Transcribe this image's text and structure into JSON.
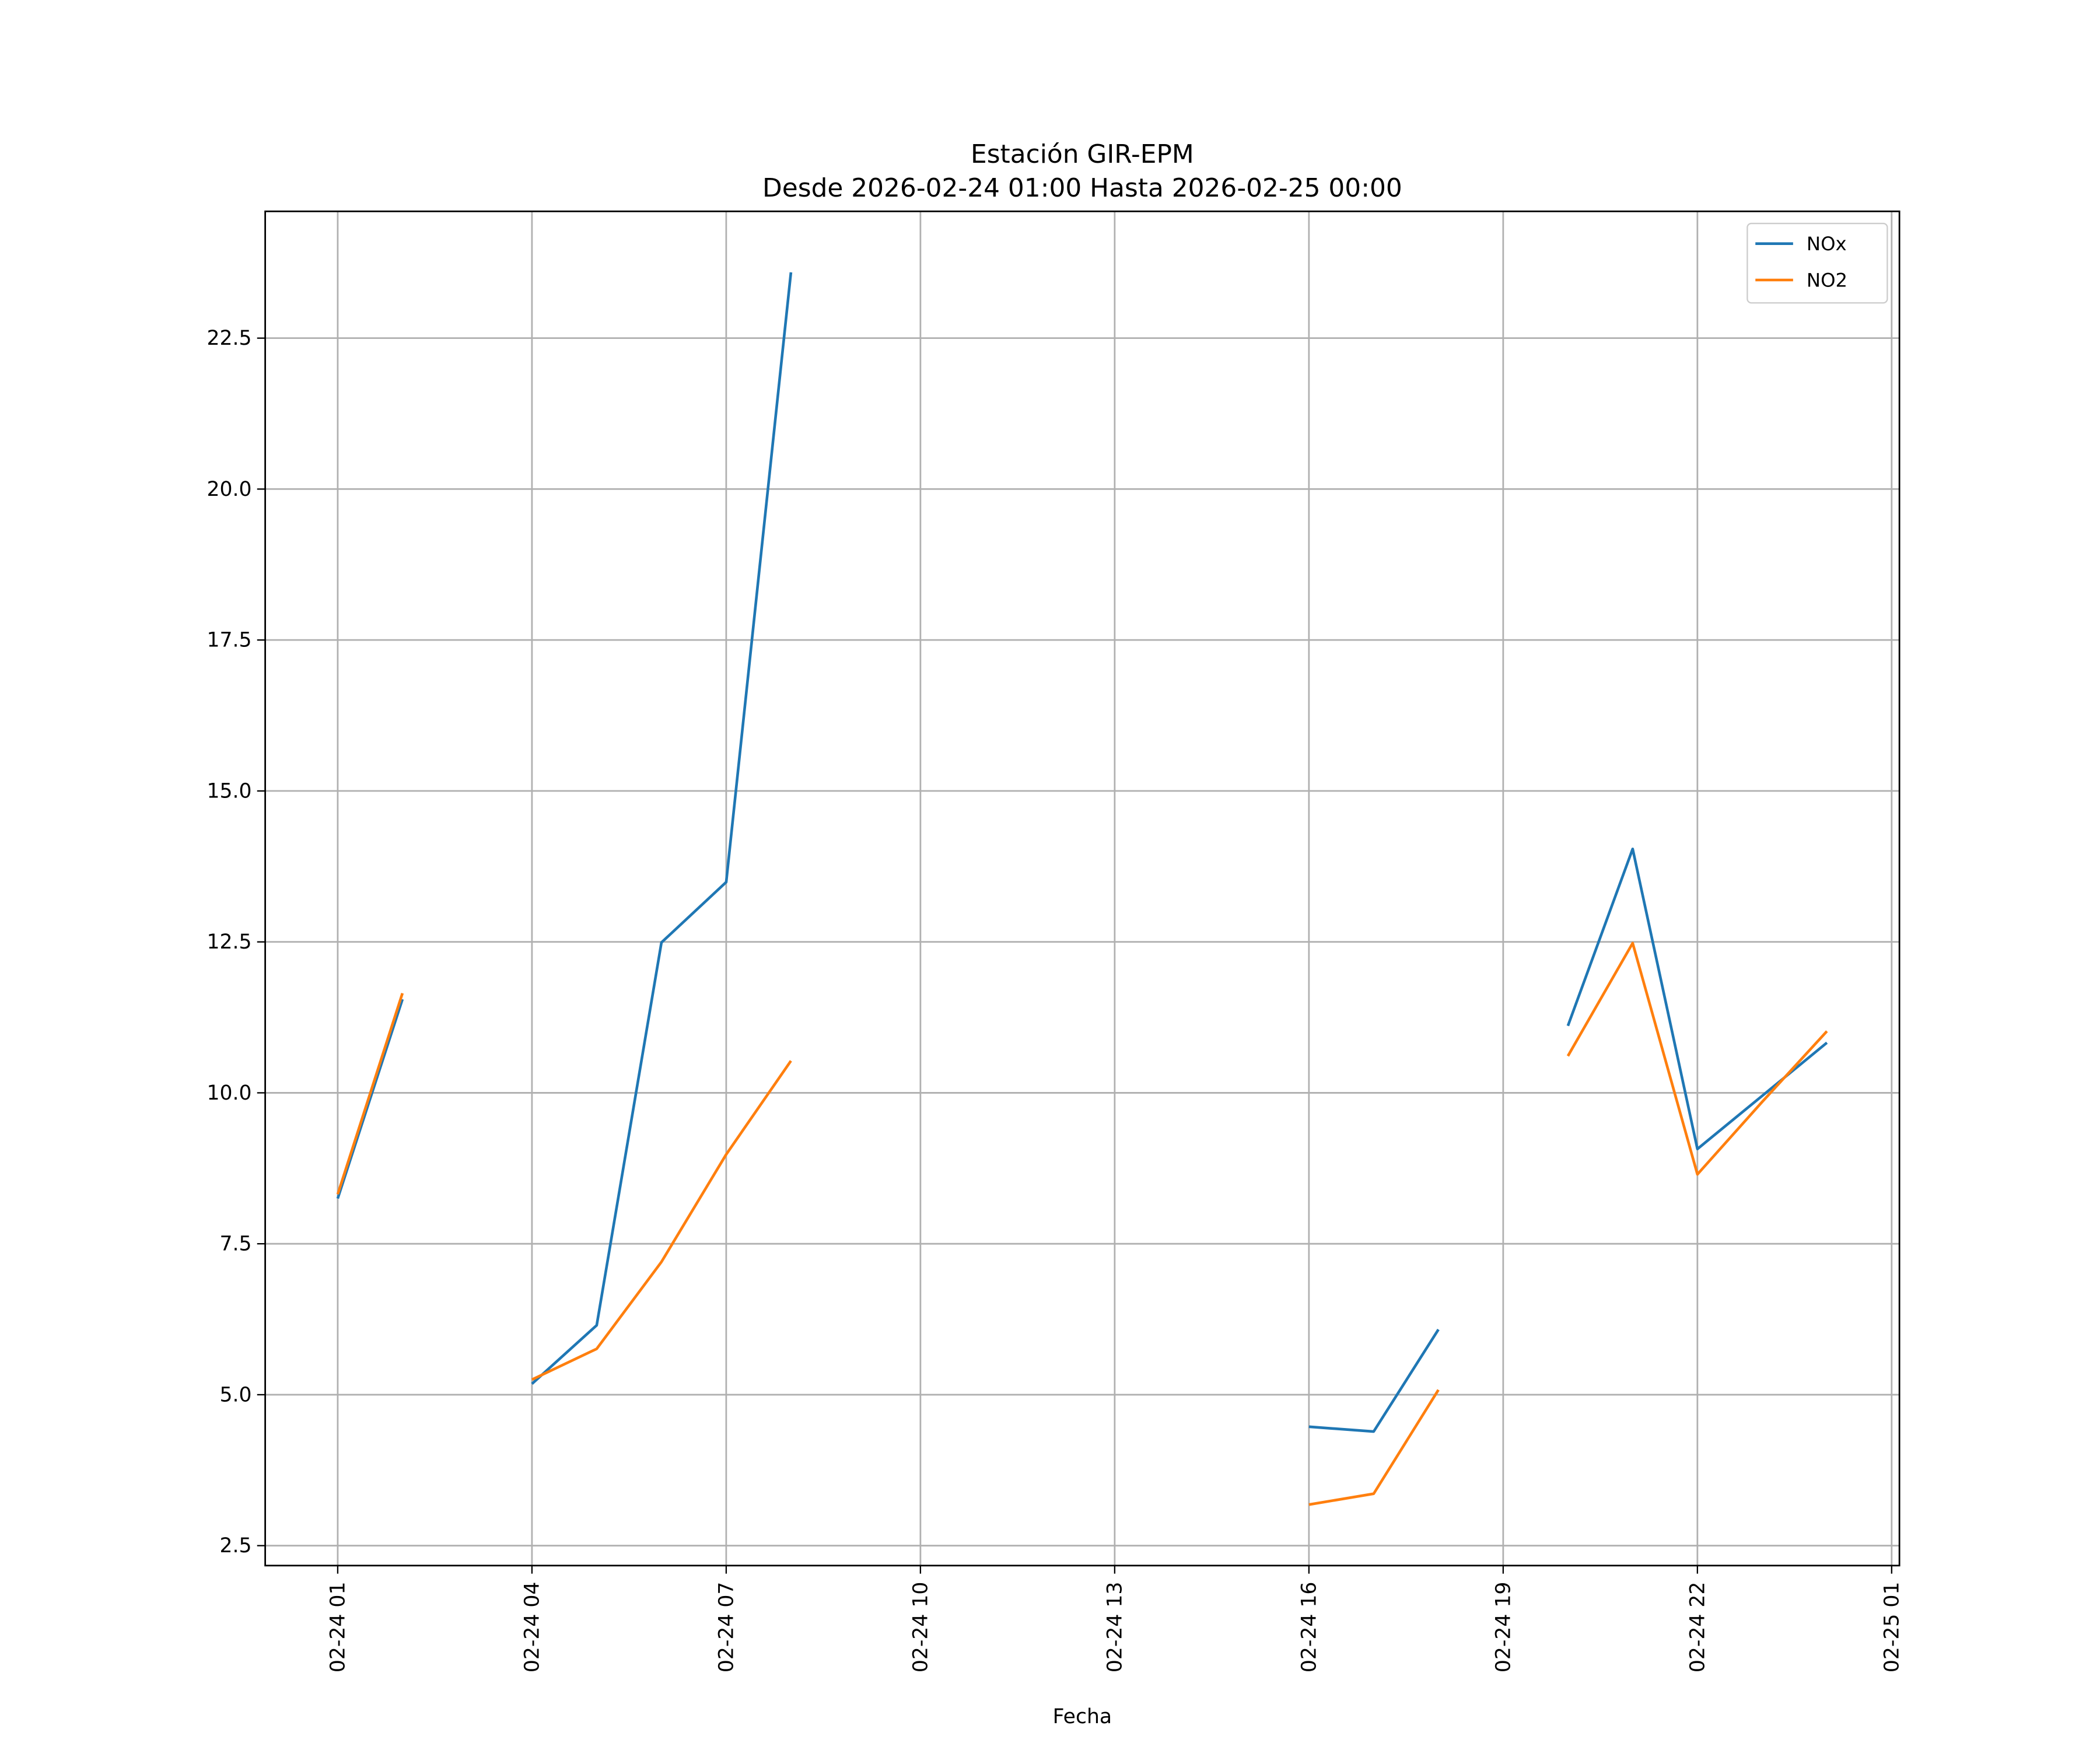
{
  "chart_data": {
    "type": "line",
    "title": "Estación GIR-EPM",
    "subtitle": "Desde 2026-02-24 01:00 Hasta 2026-02-25 00:00",
    "xlabel": "Fecha",
    "ylabel": "",
    "x_unit": "hours since 2026-02-24 00:00",
    "xlim": [
      -0.12,
      25.12
    ],
    "ylim": [
      2.17,
      24.6
    ],
    "xticks": [
      {
        "value": 1,
        "label": "02-24 01"
      },
      {
        "value": 4,
        "label": "02-24 04"
      },
      {
        "value": 7,
        "label": "02-24 07"
      },
      {
        "value": 10,
        "label": "02-24 10"
      },
      {
        "value": 13,
        "label": "02-24 13"
      },
      {
        "value": 16,
        "label": "02-24 16"
      },
      {
        "value": 19,
        "label": "02-24 19"
      },
      {
        "value": 22,
        "label": "02-24 22"
      },
      {
        "value": 25,
        "label": "02-25 01"
      }
    ],
    "yticks": [
      {
        "value": 2.5,
        "label": "2.5"
      },
      {
        "value": 5,
        "label": "5.0"
      },
      {
        "value": 7.5,
        "label": "7.5"
      },
      {
        "value": 10,
        "label": "10.0"
      },
      {
        "value": 12.5,
        "label": "12.5"
      },
      {
        "value": 15,
        "label": "15.0"
      },
      {
        "value": 17.5,
        "label": "17.5"
      },
      {
        "value": 20,
        "label": "20.0"
      },
      {
        "value": 22.5,
        "label": "22.5"
      }
    ],
    "grid": true,
    "legend_position": "top-right",
    "x": [
      1,
      2,
      3,
      4,
      5,
      6,
      7,
      8,
      9,
      10,
      11,
      12,
      13,
      14,
      15,
      16,
      17,
      18,
      19,
      20,
      21,
      22,
      23,
      24
    ],
    "series": [
      {
        "name": "NOx",
        "color": "#1f77b4",
        "values": [
          8.25,
          11.55,
          null,
          5.18,
          6.15,
          12.49,
          13.49,
          23.59,
          null,
          null,
          null,
          null,
          null,
          null,
          null,
          4.47,
          4.39,
          6.08,
          null,
          11.11,
          14.04,
          9.07,
          9.95,
          10.83
        ]
      },
      {
        "name": "NO2",
        "color": "#ff7f0e",
        "values": [
          8.32,
          11.65,
          null,
          5.25,
          5.76,
          7.2,
          8.98,
          10.53,
          null,
          null,
          null,
          null,
          null,
          null,
          null,
          3.18,
          3.36,
          5.08,
          null,
          10.61,
          12.48,
          8.65,
          9.85,
          11.02
        ]
      }
    ]
  }
}
